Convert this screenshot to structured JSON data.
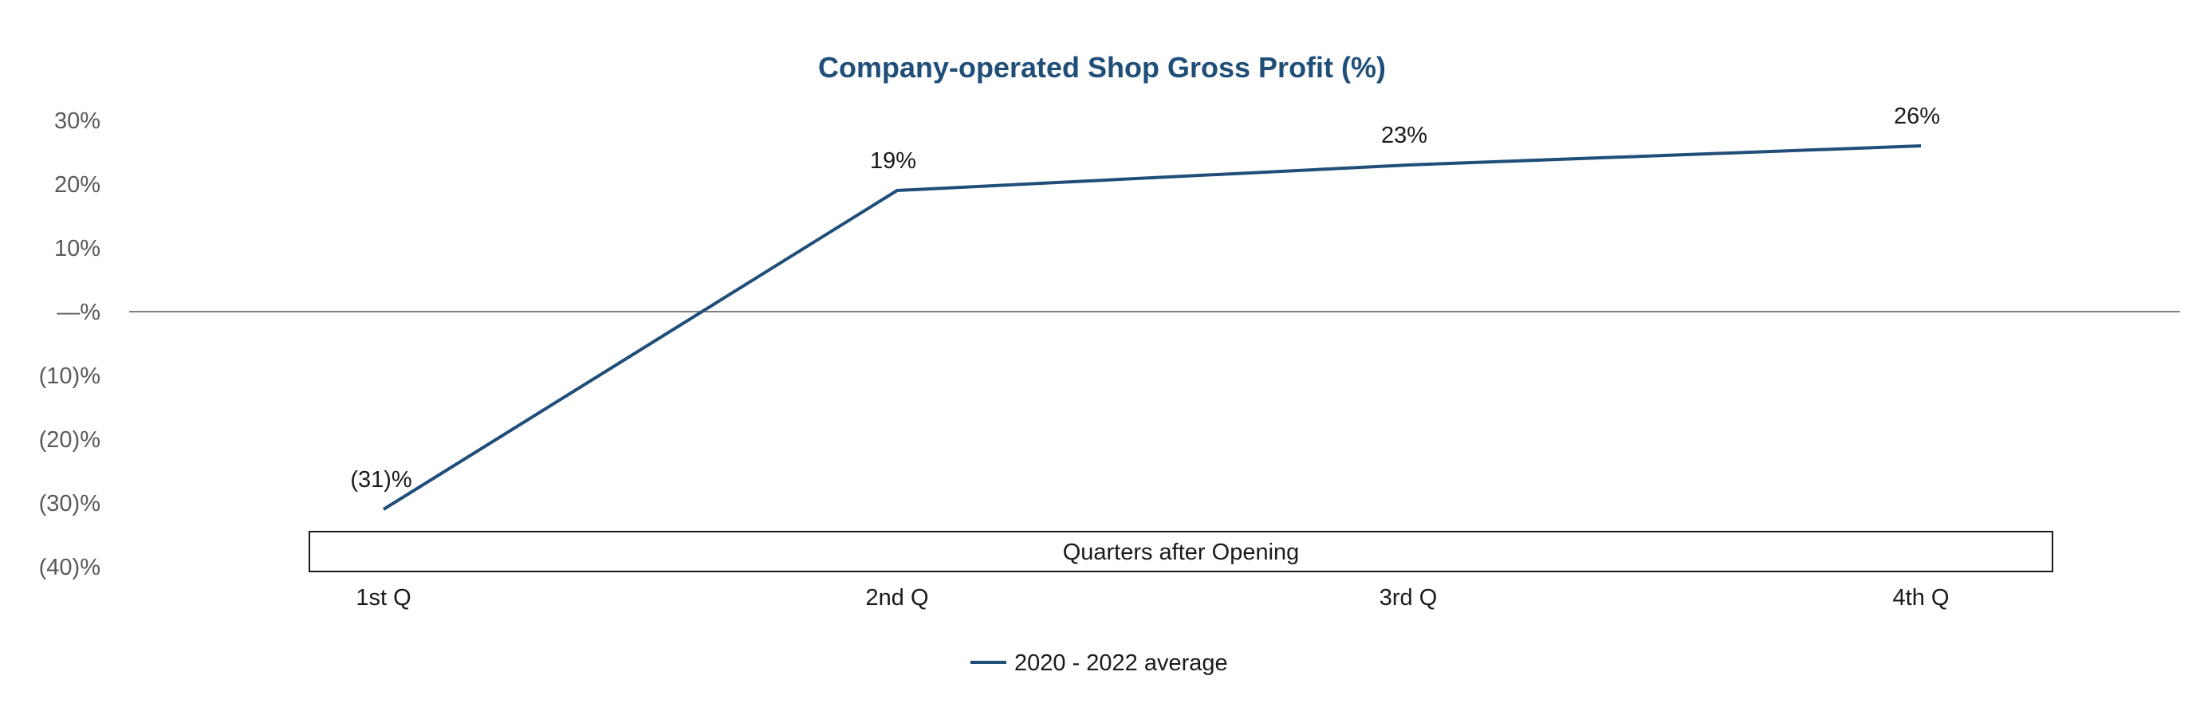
{
  "chart_data": {
    "type": "line",
    "title": "Company-operated Shop Gross Profit (%)",
    "categories": [
      "1st Q",
      "2nd Q",
      "3rd Q",
      "4th Q"
    ],
    "series": [
      {
        "name": "2020 - 2022 average",
        "values": [
          -31,
          19,
          23,
          26
        ],
        "labels": [
          "(31)%",
          "19%",
          "23%",
          "26%"
        ],
        "color": "#1f4e79"
      }
    ],
    "ylim": [
      -40,
      30
    ],
    "yticks": [
      30,
      20,
      10,
      0,
      -10,
      -20,
      -30,
      -40
    ],
    "ytick_labels": [
      "30%",
      "20%",
      "10%",
      "—%",
      "(10)%",
      "(20)%",
      "(30)%",
      "(40)%"
    ],
    "axis_box_label": "Quarters after Opening",
    "legend_position": "bottom-center",
    "grid": false
  }
}
